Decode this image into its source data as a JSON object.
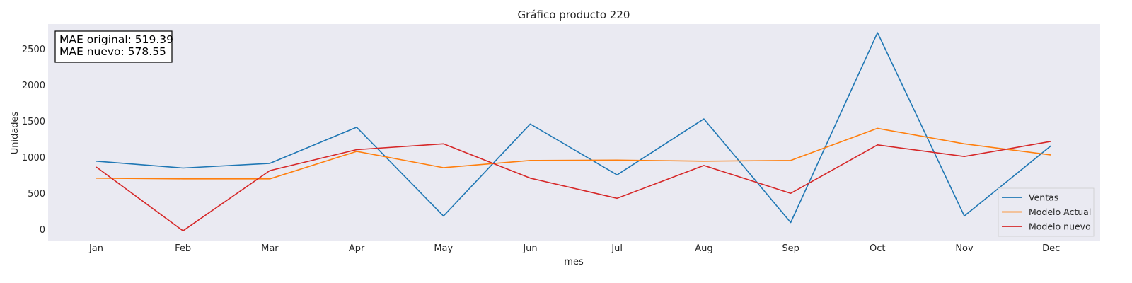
{
  "chart_data": {
    "type": "line",
    "title": "Gráfico producto 220",
    "xlabel": "mes",
    "ylabel": "Unidades",
    "categories": [
      "Jan",
      "Feb",
      "Mar",
      "Apr",
      "May",
      "Jun",
      "Jul",
      "Aug",
      "Sep",
      "Oct",
      "Nov",
      "Dec"
    ],
    "ylim": [
      -150,
      2850
    ],
    "yticks": [
      0,
      500,
      1000,
      1500,
      2000,
      2500
    ],
    "grid": false,
    "legend_position": "lower-right",
    "background": "#eaeaf2",
    "series": [
      {
        "name": "Ventas",
        "color": "#1f77b4",
        "values": [
          950,
          855,
          920,
          1420,
          190,
          1465,
          760,
          1535,
          100,
          2730,
          190,
          1165
        ]
      },
      {
        "name": "Modelo Actual",
        "color": "#ff7f0e",
        "values": [
          715,
          705,
          705,
          1085,
          860,
          960,
          965,
          950,
          960,
          1405,
          1190,
          1035
        ]
      },
      {
        "name": "Modelo nuevo",
        "color": "#d62728",
        "values": [
          870,
          -15,
          820,
          1110,
          1190,
          715,
          435,
          890,
          505,
          1175,
          1015,
          1225
        ]
      }
    ],
    "annotation": [
      "MAE original: 519.39",
      "MAE nuevo: 578.55"
    ]
  }
}
